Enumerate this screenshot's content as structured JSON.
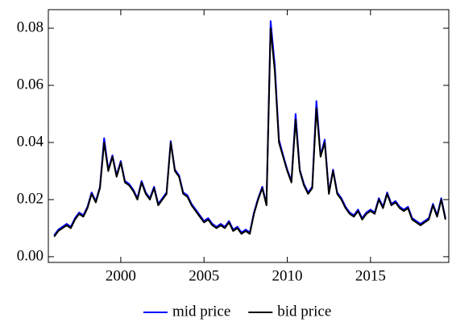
{
  "chart_data": {
    "type": "line",
    "x": [
      1996,
      1996.25,
      1996.5,
      1996.75,
      1997,
      1997.25,
      1997.5,
      1997.75,
      1998,
      1998.25,
      1998.5,
      1998.75,
      1999,
      1999.25,
      1999.5,
      1999.75,
      2000,
      2000.25,
      2000.5,
      2000.75,
      2001,
      2001.25,
      2001.5,
      2001.75,
      2002,
      2002.25,
      2002.5,
      2002.75,
      2003,
      2003.25,
      2003.5,
      2003.75,
      2004,
      2004.25,
      2004.5,
      2004.75,
      2005,
      2005.25,
      2005.5,
      2005.75,
      2006,
      2006.25,
      2006.5,
      2006.75,
      2007,
      2007.25,
      2007.5,
      2007.75,
      2008,
      2008.25,
      2008.5,
      2008.75,
      2009,
      2009.25,
      2009.5,
      2009.75,
      2010,
      2010.25,
      2010.5,
      2010.75,
      2011,
      2011.25,
      2011.5,
      2011.75,
      2012,
      2012.25,
      2012.5,
      2012.75,
      2013,
      2013.25,
      2013.5,
      2013.75,
      2014,
      2014.25,
      2014.5,
      2014.75,
      2015,
      2015.25,
      2015.5,
      2015.75,
      2016,
      2016.25,
      2016.5,
      2016.75,
      2017,
      2017.25,
      2017.5,
      2017.75,
      2018,
      2018.25,
      2018.5,
      2018.75,
      2019,
      2019.25,
      2019.5
    ],
    "series": [
      {
        "name": "mid price",
        "color": "#0000ff",
        "values": [
          0.0075,
          0.0095,
          0.0105,
          0.0115,
          0.0105,
          0.0135,
          0.0155,
          0.0145,
          0.0175,
          0.0225,
          0.0195,
          0.0245,
          0.0415,
          0.0305,
          0.0355,
          0.0285,
          0.0335,
          0.0265,
          0.0255,
          0.0235,
          0.0205,
          0.0265,
          0.0225,
          0.0205,
          0.0245,
          0.0185,
          0.0205,
          0.0225,
          0.0405,
          0.0305,
          0.0285,
          0.0225,
          0.0215,
          0.0185,
          0.0165,
          0.0145,
          0.0125,
          0.0135,
          0.0115,
          0.0105,
          0.0115,
          0.0105,
          0.0125,
          0.0095,
          0.0105,
          0.0085,
          0.0095,
          0.0085,
          0.0155,
          0.0205,
          0.0245,
          0.0185,
          0.0825,
          0.067,
          0.041,
          0.0355,
          0.0305,
          0.0265,
          0.05,
          0.0305,
          0.0255,
          0.0225,
          0.0245,
          0.0545,
          0.0355,
          0.041,
          0.0225,
          0.0305,
          0.0225,
          0.0205,
          0.0175,
          0.0155,
          0.0145,
          0.0165,
          0.0135,
          0.0155,
          0.0165,
          0.0155,
          0.0205,
          0.0175,
          0.0225,
          0.0185,
          0.0195,
          0.0175,
          0.0165,
          0.0175,
          0.0135,
          0.0125,
          0.0115,
          0.0125,
          0.0135,
          0.0185,
          0.0145,
          0.0205,
          0.0135
        ]
      },
      {
        "name": "bid price",
        "color": "#000000",
        "values": [
          0.007,
          0.009,
          0.01,
          0.011,
          0.01,
          0.013,
          0.015,
          0.014,
          0.017,
          0.022,
          0.019,
          0.024,
          0.04,
          0.03,
          0.035,
          0.028,
          0.033,
          0.026,
          0.025,
          0.023,
          0.02,
          0.026,
          0.022,
          0.02,
          0.024,
          0.018,
          0.02,
          0.022,
          0.04,
          0.03,
          0.028,
          0.022,
          0.021,
          0.018,
          0.016,
          0.014,
          0.012,
          0.013,
          0.011,
          0.01,
          0.011,
          0.01,
          0.012,
          0.009,
          0.01,
          0.008,
          0.009,
          0.008,
          0.015,
          0.02,
          0.024,
          0.018,
          0.08,
          0.065,
          0.04,
          0.035,
          0.03,
          0.026,
          0.048,
          0.03,
          0.025,
          0.022,
          0.024,
          0.052,
          0.035,
          0.04,
          0.022,
          0.03,
          0.022,
          0.02,
          0.017,
          0.015,
          0.014,
          0.016,
          0.013,
          0.015,
          0.016,
          0.015,
          0.02,
          0.017,
          0.022,
          0.018,
          0.019,
          0.017,
          0.016,
          0.017,
          0.013,
          0.012,
          0.011,
          0.012,
          0.013,
          0.018,
          0.014,
          0.02,
          0.013
        ]
      }
    ],
    "xlim": [
      1995.65,
      2019.7
    ],
    "xticks": [
      2000,
      2005,
      2010,
      2015
    ],
    "ylim": [
      -0.002,
      0.0865
    ],
    "yticks": [
      {
        "value": 0,
        "label": "0.00"
      },
      0.02,
      0.04,
      0.06,
      0.08
    ],
    "legend": "bottom"
  }
}
